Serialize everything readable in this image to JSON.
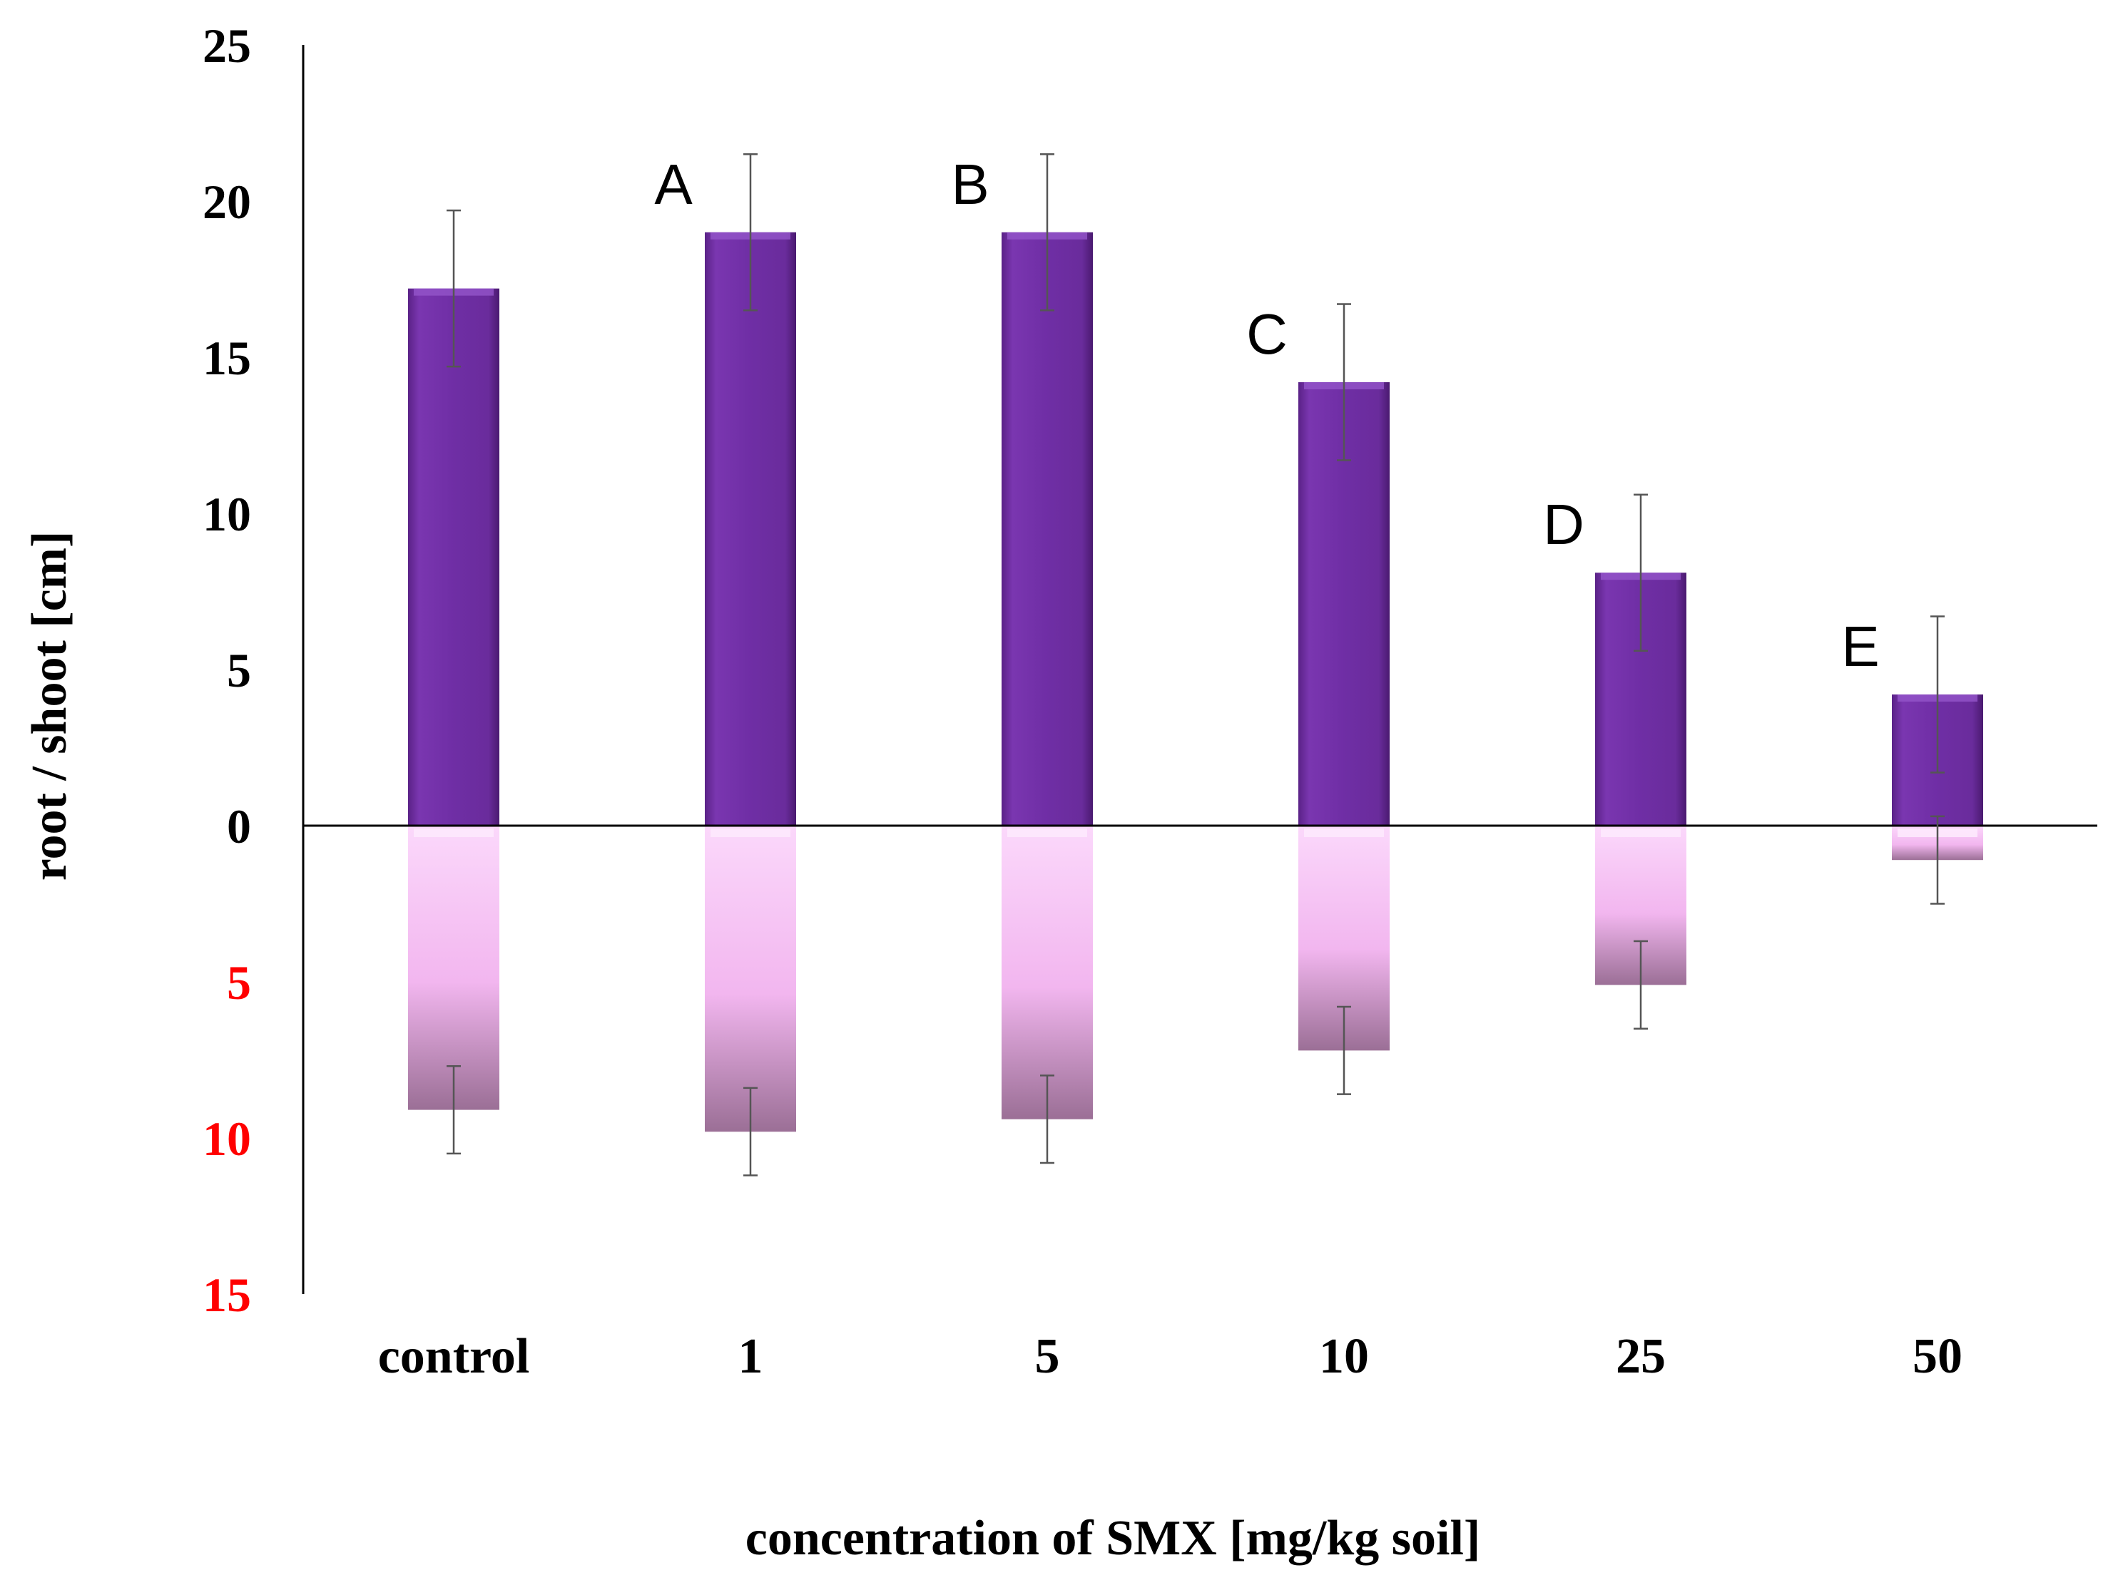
{
  "chart_data": {
    "type": "bar",
    "subtype": "diverging-stacked",
    "categories": [
      "control",
      "1",
      "5",
      "10",
      "25",
      "50"
    ],
    "series": [
      {
        "name": "shoot",
        "direction": "up",
        "color": "#7030a0",
        "values": [
          17.2,
          19.0,
          19.0,
          14.2,
          8.1,
          4.2
        ],
        "errors": [
          2.5,
          2.5,
          2.5,
          2.5,
          2.5,
          2.5
        ]
      },
      {
        "name": "root",
        "direction": "down",
        "color": "#f4b8f0",
        "values": [
          9.1,
          9.8,
          9.4,
          7.2,
          5.1,
          1.1
        ],
        "errors": [
          1.4,
          1.4,
          1.4,
          1.4,
          1.4,
          1.4
        ]
      }
    ],
    "significance_labels": [
      "",
      "A",
      "B",
      "C",
      "D",
      "E"
    ],
    "y_ticks_up": [
      "25",
      "20",
      "15",
      "10",
      "5",
      "0"
    ],
    "y_ticks_down": [
      "5",
      "10",
      "15"
    ],
    "ylim": [
      -15,
      25
    ],
    "ylabel": "root / shoot [cm]",
    "xlabel": "concentration of SMX [mg/kg soil]",
    "colors": {
      "tick_up": "#000000",
      "tick_down": "#ff0000",
      "axis": "#000000",
      "error_bar": "#555555"
    }
  }
}
